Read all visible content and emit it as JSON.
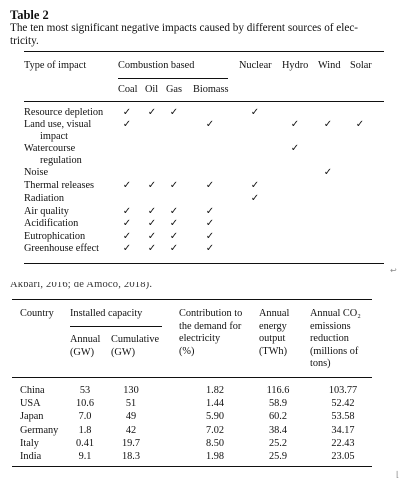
{
  "table2": {
    "title": "Table 2",
    "caption_line1": "The ten most significant negative impacts caused by different sources of elec-",
    "caption_line2": "tricity.",
    "col_type": "Type of impact",
    "col_group": "Combustion based",
    "sub_coal": "Coal",
    "sub_oil": "Oil",
    "sub_gas": "Gas",
    "sub_biomass": "Biomass",
    "col_nuclear": "Nuclear",
    "col_hydro": "Hydro",
    "col_wind": "Wind",
    "col_solar": "Solar",
    "check_glyph": "✓",
    "rows": [
      {
        "label": [
          "Resource depletion"
        ],
        "checks": [
          1,
          1,
          1,
          0,
          1,
          0,
          0,
          0
        ]
      },
      {
        "label": [
          "Land use, visual",
          "impact"
        ],
        "checks": [
          1,
          0,
          0,
          1,
          0,
          1,
          1,
          1
        ]
      },
      {
        "label": [
          "Watercourse",
          "regulation"
        ],
        "checks": [
          0,
          0,
          0,
          0,
          0,
          1,
          0,
          0
        ]
      },
      {
        "label": [
          "Noise"
        ],
        "checks": [
          0,
          0,
          0,
          0,
          0,
          0,
          1,
          0
        ]
      },
      {
        "label": [
          "Thermal releases"
        ],
        "checks": [
          1,
          1,
          1,
          1,
          1,
          0,
          0,
          0
        ]
      },
      {
        "label": [
          "Radiation"
        ],
        "checks": [
          0,
          0,
          0,
          0,
          1,
          0,
          0,
          0
        ]
      },
      {
        "label": [
          "Air quality"
        ],
        "checks": [
          1,
          1,
          1,
          1,
          0,
          0,
          0,
          0
        ]
      },
      {
        "label": [
          "Acidification"
        ],
        "checks": [
          1,
          1,
          1,
          1,
          0,
          0,
          0,
          0
        ]
      },
      {
        "label": [
          "Eutrophication"
        ],
        "checks": [
          1,
          1,
          1,
          1,
          0,
          0,
          0,
          0
        ]
      },
      {
        "label": [
          "Greenhouse effect"
        ],
        "checks": [
          1,
          1,
          1,
          1,
          0,
          0,
          0,
          0
        ]
      }
    ]
  },
  "cropped_text": "Akbari, 2016; de Amoco, 2018).",
  "page_glyph": "↩",
  "corner_glyph": "⌊",
  "table3": {
    "h_country": "Country",
    "h_installed": "Installed capacity",
    "h_annual": [
      "Annual",
      "(GW)"
    ],
    "h_cumulative": [
      "Cumulative",
      "(GW)"
    ],
    "h_contribution": [
      "Contribution to",
      "the demand for",
      "electricity",
      "(%)"
    ],
    "h_energy": [
      "Annual",
      "energy",
      "output",
      "(TWh)"
    ],
    "h_co2": [
      "Annual CO₂",
      "emissions",
      "reduction",
      "(millions of",
      "tons)"
    ],
    "rows": [
      {
        "country": "China",
        "annual": "53",
        "cumulative": "130",
        "contribution": "1.82",
        "energy": "116.6",
        "co2": "103.77"
      },
      {
        "country": "USA",
        "annual": "10.6",
        "cumulative": "51",
        "contribution": "1.44",
        "energy": "58.9",
        "co2": "52.42"
      },
      {
        "country": "Japan",
        "annual": "7.0",
        "cumulative": "49",
        "contribution": "5.90",
        "energy": "60.2",
        "co2": "53.58"
      },
      {
        "country": "Germany",
        "annual": "1.8",
        "cumulative": "42",
        "contribution": "7.02",
        "energy": "38.4",
        "co2": "34.17"
      },
      {
        "country": "Italy",
        "annual": "0.41",
        "cumulative": "19.7",
        "contribution": "8.50",
        "energy": "25.2",
        "co2": "22.43"
      },
      {
        "country": "India",
        "annual": "9.1",
        "cumulative": "18.3",
        "contribution": "1.98",
        "energy": "25.9",
        "co2": "23.05"
      }
    ]
  }
}
